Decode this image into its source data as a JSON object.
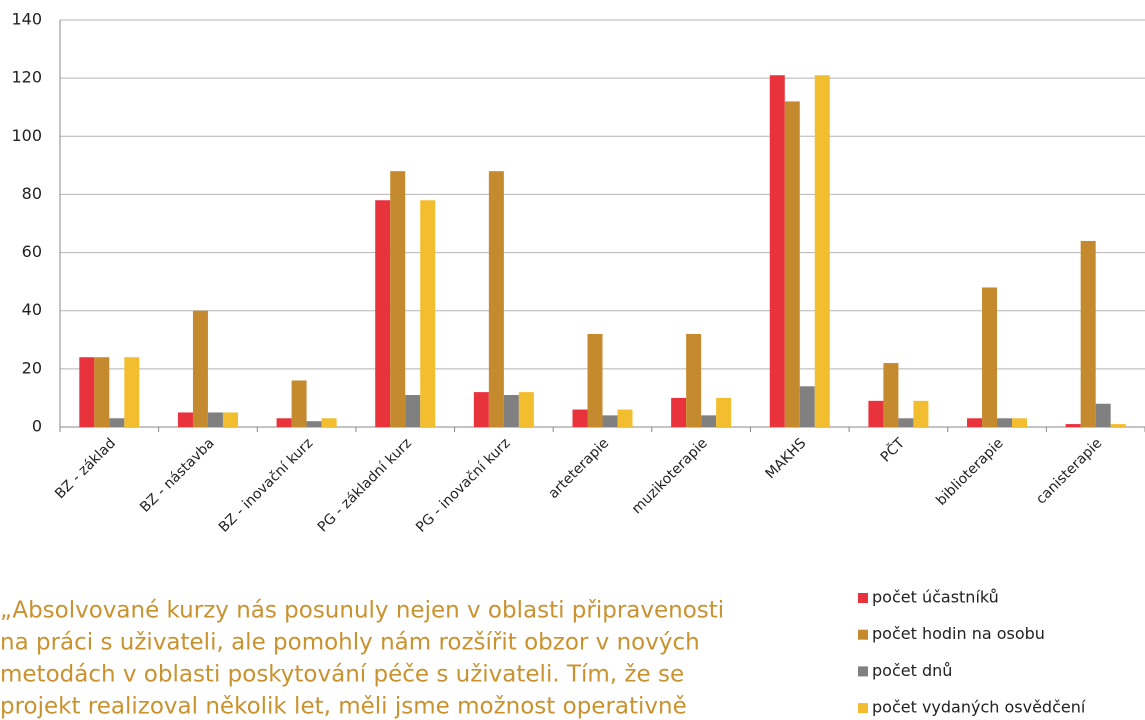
{
  "chart_data": {
    "type": "bar",
    "categories": [
      "BZ - základ",
      "BZ - nástavba",
      "BZ - inovační kurz",
      "PG - základní kurz",
      "PG - inovační kurz",
      "arteterapie",
      "muzikoterapie",
      "MAKHS",
      "PČT",
      "biblioterapie",
      "canisterapie"
    ],
    "series": [
      {
        "name": "počet účastníků",
        "color": "#e8323c",
        "values": [
          24,
          5,
          3,
          78,
          12,
          6,
          10,
          121,
          9,
          3,
          1
        ]
      },
      {
        "name": "počet hodin na osobu",
        "color": "#c68a2e",
        "values": [
          24,
          40,
          16,
          88,
          88,
          32,
          32,
          112,
          22,
          48,
          64
        ]
      },
      {
        "name": "počet dnů",
        "color": "#808080",
        "values": [
          3,
          5,
          2,
          11,
          11,
          4,
          4,
          14,
          3,
          3,
          8
        ]
      },
      {
        "name": "počet vydaných osvědčení",
        "color": "#f2bd2e",
        "values": [
          24,
          5,
          3,
          78,
          12,
          6,
          10,
          121,
          9,
          3,
          1
        ]
      }
    ],
    "ylim": [
      0,
      140
    ],
    "yticks": [
      0,
      20,
      40,
      60,
      80,
      100,
      120,
      140
    ],
    "grid": true,
    "legend": "bottom-right"
  },
  "quote": {
    "lines": [
      "„Absolvované kurzy nás posunuly nejen v oblasti připravenosti",
      "na práci s uživateli, ale pomohly nám rozšířit obzor v nových",
      "metodách v oblasti poskytování péče s uživateli. Tím, že se",
      "projekt realizoval několik let, měli jsme možnost operativně"
    ]
  }
}
